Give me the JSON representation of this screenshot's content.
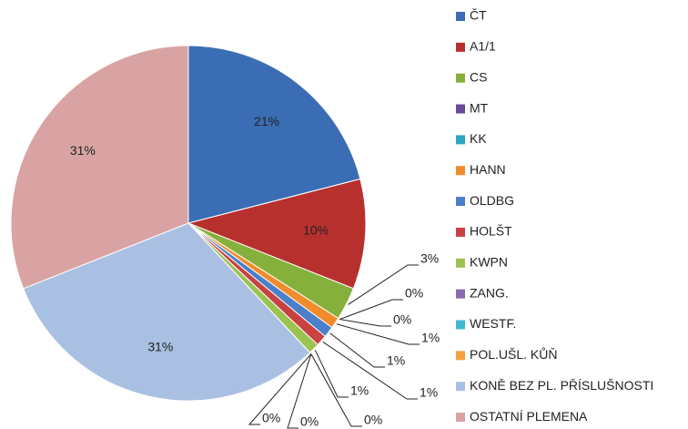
{
  "chart_data": {
    "type": "pie",
    "categories": [
      "ČT",
      "A1/1",
      "CS",
      "MT",
      "KK",
      "HANN",
      "OLDBG",
      "HOLŠT",
      "KWPN",
      "ZANG.",
      "WESTF.",
      "POL.UŠL. KŮŇ",
      "KONĚ BEZ PL. PŘÍSLUŠNOSTI",
      "OSTATNÍ PLEMENA"
    ],
    "values": [
      21,
      10,
      3,
      0,
      0,
      1,
      1,
      1,
      1,
      0,
      0,
      0,
      31,
      31
    ],
    "value_labels": [
      "21%",
      "10%",
      "3%",
      "0%",
      "0%",
      "1%",
      "1%",
      "1%",
      "1%",
      "0%",
      "0%",
      "0%",
      "31%",
      "31%"
    ],
    "colors": [
      "#3b6db4",
      "#b8302e",
      "#86b03c",
      "#6a4a9a",
      "#2fa5c4",
      "#f08c2c",
      "#4a80c8",
      "#c84242",
      "#9cc250",
      "#8a6ab0",
      "#40b8d0",
      "#f5a040",
      "#a9c0e2",
      "#d9a3a3"
    ],
    "legend": "right"
  }
}
